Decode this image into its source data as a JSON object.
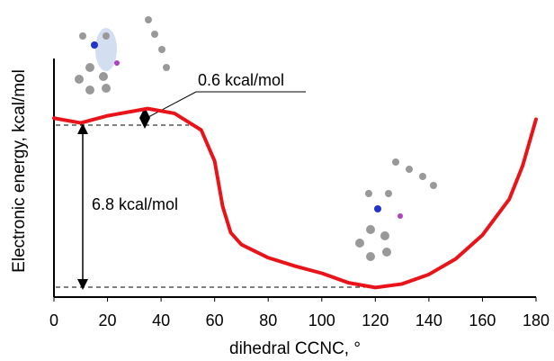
{
  "chart_data": {
    "type": "line",
    "xlabel": "dihedral CCNC, °",
    "ylabel": "Electronic energy, kcal/mol",
    "annotations": [
      "0.6 kcal/mol",
      "6.8 kcal/mol"
    ],
    "xlim": [
      0,
      180
    ],
    "xticks": [
      0,
      20,
      40,
      60,
      80,
      100,
      120,
      140,
      160,
      180
    ],
    "ylim": [
      -0.4,
      9.6
    ],
    "grid": false,
    "series": [
      {
        "color": "#e8141a",
        "x": [
          0,
          10,
          20,
          35,
          45,
          55,
          60,
          63,
          66,
          70,
          80,
          90,
          100,
          110,
          120,
          130,
          140,
          150,
          160,
          170,
          175,
          180
        ],
        "values": [
          7.1,
          6.9,
          7.2,
          7.5,
          7.3,
          6.6,
          5.3,
          3.4,
          2.3,
          1.8,
          1.25,
          0.9,
          0.6,
          0.2,
          0,
          0.15,
          0.55,
          1.2,
          2.2,
          3.7,
          5.1,
          7.05
        ]
      }
    ]
  }
}
